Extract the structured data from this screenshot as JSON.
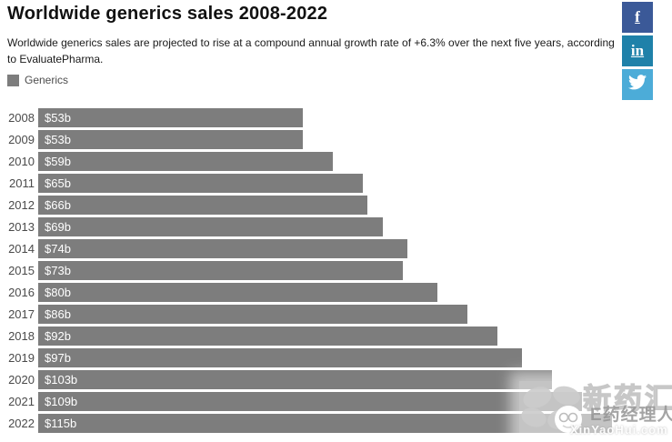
{
  "header": {
    "title": "Worldwide generics sales 2008-2022",
    "subtitle": "Worldwide generics sales are projected to rise at a compound annual growth rate of +6.3% over the next five years, according to EvaluatePharma."
  },
  "legend": {
    "label": "Generics",
    "swatch_color": "#7d7d7d"
  },
  "social": {
    "facebook": {
      "label": "f",
      "color": "#3b5998"
    },
    "linkedin": {
      "label": "in",
      "color": "#1f81a9"
    },
    "twitter": {
      "color": "#4cacd8"
    }
  },
  "chart_data": {
    "type": "bar",
    "orientation": "horizontal",
    "title": "Worldwide generics sales 2008-2022",
    "categories": [
      "2008",
      "2009",
      "2010",
      "2011",
      "2012",
      "2013",
      "2014",
      "2015",
      "2016",
      "2017",
      "2018",
      "2019",
      "2020",
      "2021",
      "2022"
    ],
    "series": [
      {
        "name": "Generics",
        "values": [
          53,
          53,
          59,
          65,
          66,
          69,
          74,
          73,
          80,
          86,
          92,
          97,
          103,
          109,
          115
        ],
        "value_labels": [
          "$53b",
          "$53b",
          "$59b",
          "$65b",
          "$66b",
          "$69b",
          "$74b",
          "$73b",
          "$80b",
          "$86b",
          "$92b",
          "$97b",
          "$103b",
          "$109b",
          "$115b"
        ]
      }
    ],
    "unit": "billion USD",
    "xlim": [
      0,
      127
    ],
    "grid": false,
    "bar_color": "#7d7d7d",
    "legend_position": "top-left"
  },
  "watermark": {
    "brand_large": "新药汇",
    "brand_small": "E药经理人",
    "domain": "XinYaoHui.com"
  }
}
